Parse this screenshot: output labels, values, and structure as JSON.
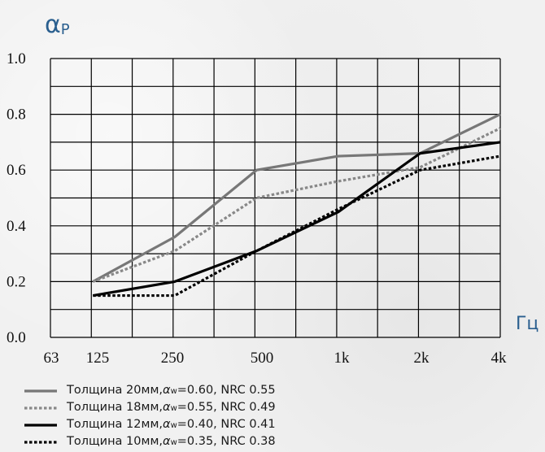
{
  "chart_data": {
    "type": "line",
    "ylabel": "α",
    "ylabel_sub": "P",
    "xlabel": "Гц",
    "x": [
      "63",
      "125",
      "250",
      "500",
      "1k",
      "2k",
      "4k"
    ],
    "y_ticks": [
      "1.0",
      "0.8",
      "0.6",
      "0.4",
      "0.2",
      "0.0"
    ],
    "ylim": [
      0,
      1
    ],
    "grid": true,
    "legend_position": "bottom",
    "series": [
      {
        "name_prefix": "Толщина 20мм, ",
        "name_aw": "α",
        "name_aw_sub": "w",
        "name_suffix": "=0.60, NRC 0.55",
        "x": [
          "125",
          "250",
          "500",
          "1k",
          "2k",
          "4k"
        ],
        "values": [
          0.2,
          0.36,
          0.6,
          0.65,
          0.66,
          0.8
        ],
        "color": "#777777",
        "style": "solid"
      },
      {
        "name_prefix": "Толщина 18мм, ",
        "name_aw": "α",
        "name_aw_sub": "w",
        "name_suffix": "=0.55, NRC 0.49",
        "x": [
          "125",
          "250",
          "500",
          "1k",
          "2k",
          "4k"
        ],
        "values": [
          0.2,
          0.31,
          0.5,
          0.56,
          0.61,
          0.75
        ],
        "color": "#888888",
        "style": "dotted"
      },
      {
        "name_prefix": "Толщина 12мм, ",
        "name_aw": "α",
        "name_aw_sub": "w",
        "name_suffix": "=0.40, NRC 0.41",
        "x": [
          "125",
          "250",
          "500",
          "1k",
          "2k",
          "4k"
        ],
        "values": [
          0.15,
          0.2,
          0.31,
          0.45,
          0.66,
          0.7
        ],
        "color": "#000000",
        "style": "solid"
      },
      {
        "name_prefix": "Толщина 10мм, ",
        "name_aw": "α",
        "name_aw_sub": "w",
        "name_suffix": "=0.35, NRC 0.38",
        "x": [
          "125",
          "250",
          "500",
          "1k",
          "2k",
          "4k"
        ],
        "values": [
          0.15,
          0.15,
          0.31,
          0.46,
          0.6,
          0.65
        ],
        "color": "#000000",
        "style": "dotted"
      }
    ]
  }
}
